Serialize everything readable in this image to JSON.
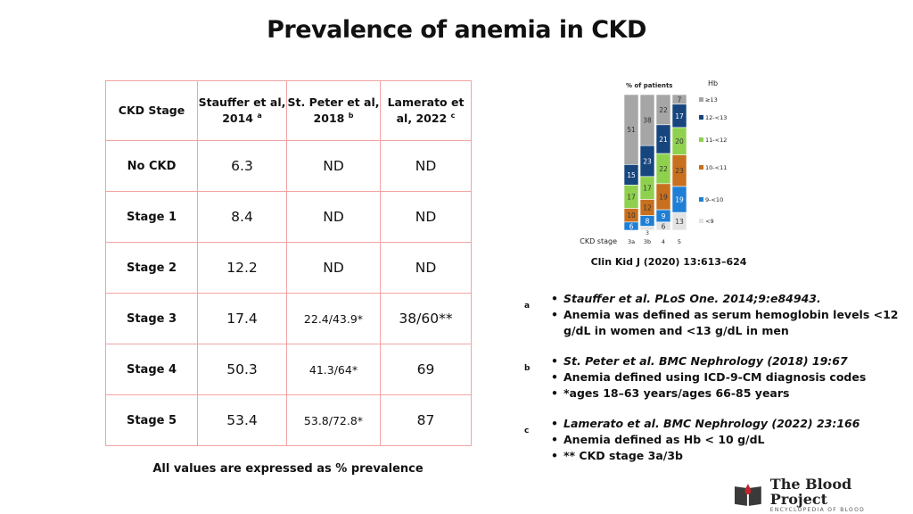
{
  "title": "Prevalence of anemia in CKD",
  "table": {
    "headers": [
      {
        "text": "CKD Stage",
        "sup": ""
      },
      {
        "text": "Stauffer et al,  2014",
        "sup": "a"
      },
      {
        "text": "St. Peter et al, 2018",
        "sup": "b"
      },
      {
        "text": "Lamerato et al, 2022",
        "sup": "c"
      }
    ],
    "rows": [
      {
        "stage": "No CKD",
        "stauffer": "6.3",
        "stpeter": "ND",
        "lamerato": "ND"
      },
      {
        "stage": "Stage 1",
        "stauffer": "8.4",
        "stpeter": "ND",
        "lamerato": "ND"
      },
      {
        "stage": "Stage 2",
        "stauffer": "12.2",
        "stpeter": "ND",
        "lamerato": "ND"
      },
      {
        "stage": "Stage 3",
        "stauffer": "17.4",
        "stpeter": "22.4/43.9*",
        "lamerato": "38/60**"
      },
      {
        "stage": "Stage 4",
        "stauffer": "50.3",
        "stpeter": "41.3/64*",
        "lamerato": "69"
      },
      {
        "stage": "Stage 5",
        "stauffer": "53.4",
        "stpeter": "53.8/72.8*",
        "lamerato": "87"
      }
    ],
    "footnote": "All values are expressed as % prevalence"
  },
  "chart_citation": "Clin Kid J (2020) 13:613–624",
  "chart_data": {
    "type": "bar",
    "stacked": true,
    "title": "% of patients",
    "legend_title": "Hb",
    "xlabel": "CKD stage",
    "categories": [
      "3a",
      "3b",
      "4",
      "5"
    ],
    "ylim": [
      0,
      100
    ],
    "legend_position": "right",
    "series": [
      {
        "name": "<9",
        "color": "#e3e3e3",
        "values": [
          null,
          3,
          6,
          13
        ]
      },
      {
        "name": "9-<10",
        "color": "#1f7fd6",
        "values": [
          6,
          8,
          9,
          19
        ]
      },
      {
        "name": "10-<11",
        "color": "#c8701e",
        "values": [
          10,
          12,
          19,
          23
        ]
      },
      {
        "name": "11-<12",
        "color": "#8fd14f",
        "values": [
          17,
          17,
          22,
          20
        ]
      },
      {
        "name": "12-<13",
        "color": "#17467e",
        "values": [
          15,
          23,
          21,
          17
        ]
      },
      {
        "name": "≥13",
        "color": "#a6a6a6",
        "values": [
          51,
          38,
          22,
          7
        ]
      }
    ]
  },
  "references": [
    {
      "letter": "a",
      "lines": [
        {
          "text": "Stauffer et al. PLoS One. 2014;9:e84943.",
          "italic": true
        },
        {
          "text": "Anemia was defined as serum hemoglobin levels <12 g/dL in women and <13 g/dL in men",
          "italic": false
        }
      ]
    },
    {
      "letter": "b",
      "lines": [
        {
          "text": "St. Peter et al. BMC Nephrology (2018) 19:67",
          "italic": true
        },
        {
          "text": "Anemia defined using ICD-9-CM diagnosis codes",
          "italic": false
        },
        {
          "text": "*ages 18–63 years/ages 66-85 years",
          "italic": false
        }
      ]
    },
    {
      "letter": "c",
      "lines": [
        {
          "text": "Lamerato et al. BMC Nephrology (2022) 23:166",
          "italic": true
        },
        {
          "text": "Anemia defined as Hb < 10 g/dL",
          "italic": false
        },
        {
          "text": "** CKD stage 3a/3b",
          "italic": false
        }
      ]
    }
  ],
  "logo": {
    "name": "The Blood Project",
    "subtitle": "ENCYCLOPEDIA OF BLOOD",
    "icon": "book-drop-icon"
  }
}
